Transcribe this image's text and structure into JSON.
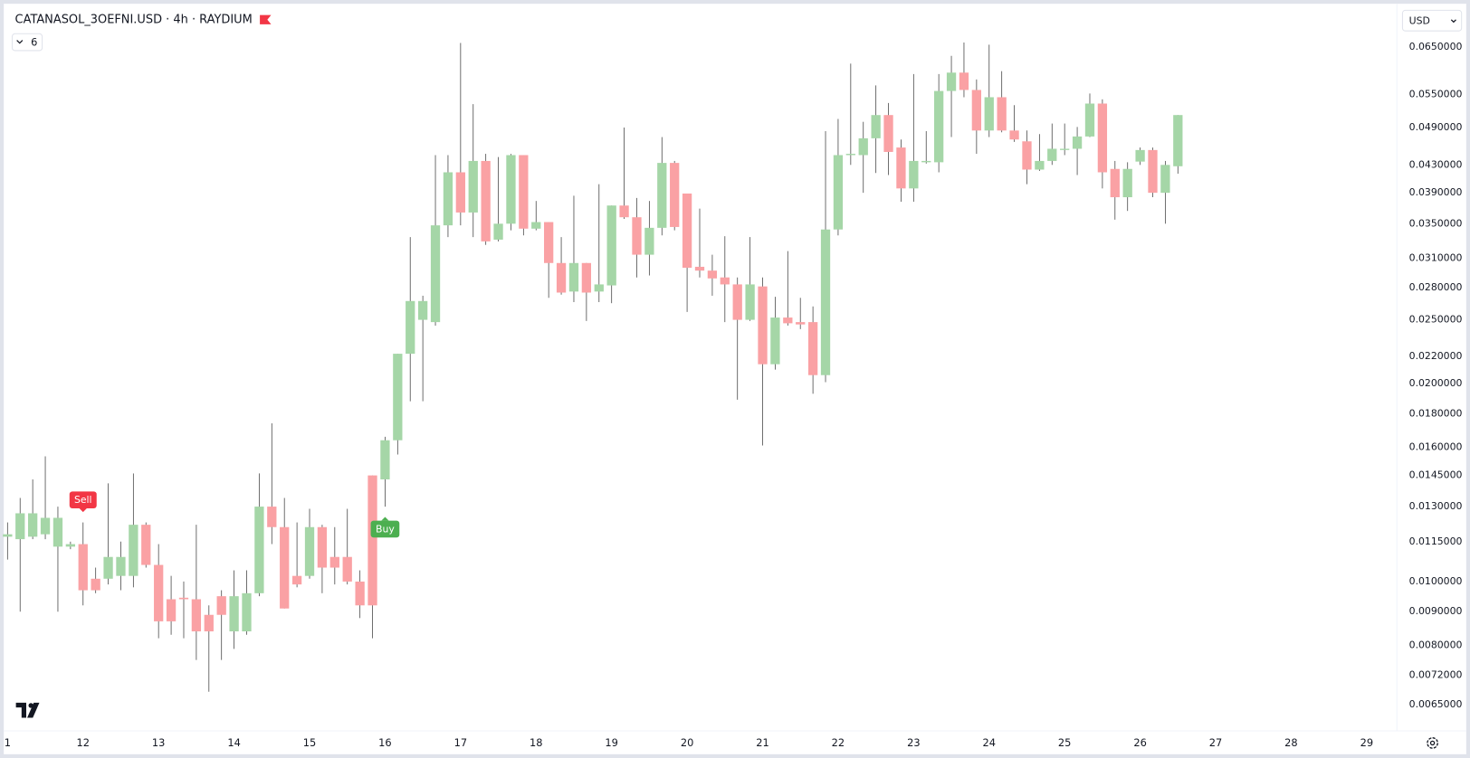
{
  "chart_data": {
    "type": "candlestick",
    "title": "CATANASOL_3OEFNI.USD · 4h · RAYDIUM",
    "indicator_count": 6,
    "currency": "USD",
    "log_scale": true,
    "grid": false,
    "up_color": "#a5d6a7",
    "down_color": "#faa1a4",
    "wick_color": "#505050",
    "open": [
      0.0117,
      0.0116,
      0.0117,
      0.0118,
      0.0113,
      0.0113,
      0.0114,
      0.0101,
      0.0101,
      0.0102,
      0.0102,
      0.0122,
      0.0106,
      0.0094,
      0.00945,
      0.0094,
      0.0089,
      0.0095,
      0.0084,
      0.0084,
      0.0096,
      0.013,
      0.0121,
      0.0102,
      0.0102,
      0.0121,
      0.0109,
      0.0109,
      0.01,
      0.0145,
      0.0143,
      0.0164,
      0.0222,
      0.025,
      0.0248,
      0.0348,
      0.0419,
      0.0364,
      0.0436,
      0.0331,
      0.035,
      0.0445,
      0.0344,
      0.0352,
      0.0305,
      0.0276,
      0.0305,
      0.0276,
      0.0282,
      0.0373,
      0.0358,
      0.0314,
      0.0345,
      0.0433,
      0.0389,
      0.0301,
      0.0297,
      0.029,
      0.0283,
      0.025,
      0.0281,
      0.0214,
      0.0252,
      0.0248,
      0.0248,
      0.0206,
      0.0343,
      0.0445,
      0.0445,
      0.0472,
      0.0512,
      0.0457,
      0.0396,
      0.0434,
      0.0434,
      0.0557,
      0.0594,
      0.0559,
      0.0485,
      0.0545,
      0.0485,
      0.0467,
      0.0423,
      0.0436,
      0.0453,
      0.0455,
      0.0475,
      0.0533,
      0.0424,
      0.0384,
      0.0435,
      0.0453,
      0.039,
      0.0428
    ],
    "high": [
      0.0123,
      0.0134,
      0.0143,
      0.0155,
      0.013,
      0.0115,
      0.0123,
      0.0105,
      0.0141,
      0.0115,
      0.0146,
      0.0123,
      0.0114,
      0.0102,
      0.01,
      0.0122,
      0.0092,
      0.0097,
      0.0104,
      0.0104,
      0.0146,
      0.0174,
      0.0134,
      0.0123,
      0.0129,
      0.0122,
      0.0121,
      0.0129,
      0.0104,
      0.0145,
      0.0166,
      0.0222,
      0.0334,
      0.0272,
      0.0445,
      0.0445,
      0.0659,
      0.0532,
      0.0447,
      0.0442,
      0.0447,
      0.0445,
      0.0379,
      0.0352,
      0.0334,
      0.0386,
      0.0305,
      0.0402,
      0.0373,
      0.049,
      0.0383,
      0.0379,
      0.0474,
      0.0436,
      0.0389,
      0.0369,
      0.0314,
      0.0335,
      0.029,
      0.0334,
      0.029,
      0.0271,
      0.0318,
      0.027,
      0.0262,
      0.0484,
      0.0505,
      0.0613,
      0.05,
      0.0568,
      0.0534,
      0.047,
      0.0591,
      0.0484,
      0.0591,
      0.063,
      0.066,
      0.058,
      0.0655,
      0.0597,
      0.053,
      0.0485,
      0.0479,
      0.0497,
      0.0497,
      0.0491,
      0.0552,
      0.0541,
      0.0436,
      0.0434,
      0.0457,
      0.0457,
      0.0436,
      0.0512
    ],
    "low": [
      0.0108,
      0.009,
      0.0116,
      0.0116,
      0.009,
      0.0112,
      0.0092,
      0.0096,
      0.0099,
      0.0097,
      0.0098,
      0.0105,
      0.0082,
      0.0083,
      0.0082,
      0.0076,
      0.0068,
      0.0076,
      0.0079,
      0.0083,
      0.0095,
      0.0114,
      0.0091,
      0.0098,
      0.0101,
      0.0096,
      0.0099,
      0.0099,
      0.0088,
      0.0082,
      0.013,
      0.0156,
      0.0188,
      0.0188,
      0.0245,
      0.0334,
      0.0348,
      0.0334,
      0.0325,
      0.0329,
      0.0342,
      0.0336,
      0.0342,
      0.027,
      0.0273,
      0.0266,
      0.0249,
      0.0266,
      0.0265,
      0.0356,
      0.029,
      0.0292,
      0.0336,
      0.0342,
      0.0257,
      0.029,
      0.0272,
      0.0248,
      0.0189,
      0.0249,
      0.0161,
      0.021,
      0.0245,
      0.0242,
      0.0193,
      0.0201,
      0.0336,
      0.043,
      0.039,
      0.0418,
      0.0415,
      0.0378,
      0.0378,
      0.0432,
      0.0419,
      0.0474,
      0.0545,
      0.0447,
      0.0474,
      0.0482,
      0.0466,
      0.0402,
      0.0421,
      0.043,
      0.0445,
      0.0415,
      0.0474,
      0.0396,
      0.0355,
      0.0366,
      0.043,
      0.0384,
      0.035,
      0.0417
    ],
    "close": [
      0.0118,
      0.0127,
      0.0127,
      0.0125,
      0.0125,
      0.0114,
      0.0097,
      0.0097,
      0.0109,
      0.0109,
      0.0122,
      0.0106,
      0.0087,
      0.0087,
      0.0094,
      0.0084,
      0.0084,
      0.0089,
      0.0095,
      0.0096,
      0.013,
      0.0121,
      0.0091,
      0.0099,
      0.0121,
      0.0105,
      0.0105,
      0.01,
      0.0092,
      0.0092,
      0.0164,
      0.0222,
      0.0267,
      0.0267,
      0.0348,
      0.0419,
      0.0364,
      0.0436,
      0.0329,
      0.035,
      0.0445,
      0.0344,
      0.0352,
      0.0305,
      0.0275,
      0.0305,
      0.0275,
      0.0283,
      0.0373,
      0.0358,
      0.0314,
      0.0345,
      0.0433,
      0.0346,
      0.03,
      0.0297,
      0.0289,
      0.0283,
      0.025,
      0.0283,
      0.0214,
      0.0252,
      0.0247,
      0.0246,
      0.0206,
      0.0343,
      0.0445,
      0.0447,
      0.0472,
      0.0512,
      0.045,
      0.0396,
      0.0436,
      0.0436,
      0.0557,
      0.0594,
      0.0559,
      0.0485,
      0.0545,
      0.0485,
      0.047,
      0.0423,
      0.0436,
      0.0455,
      0.0455,
      0.0475,
      0.0533,
      0.0419,
      0.0384,
      0.0424,
      0.0453,
      0.039,
      0.043,
      0.0512
    ],
    "annotations": [
      {
        "text": "Sell",
        "candle": 6,
        "placement": "above",
        "color": "#f23645"
      },
      {
        "text": "Buy",
        "candle": 30,
        "placement": "below",
        "color": "#4caf50"
      }
    ],
    "xlim": [
      -0.6,
      110.4
    ],
    "xticks": [
      {
        "value": 0,
        "label": "1"
      },
      {
        "value": 6,
        "label": "12"
      },
      {
        "value": 12,
        "label": "13"
      },
      {
        "value": 18,
        "label": "14"
      },
      {
        "value": 24,
        "label": "15"
      },
      {
        "value": 30,
        "label": "16"
      },
      {
        "value": 36,
        "label": "17"
      },
      {
        "value": 42,
        "label": "18"
      },
      {
        "value": 48,
        "label": "19"
      },
      {
        "value": 54,
        "label": "20"
      },
      {
        "value": 60,
        "label": "21"
      },
      {
        "value": 66,
        "label": "22"
      },
      {
        "value": 72,
        "label": "23"
      },
      {
        "value": 78,
        "label": "24"
      },
      {
        "value": 84,
        "label": "25"
      },
      {
        "value": 90,
        "label": "26"
      },
      {
        "value": 96,
        "label": "27"
      },
      {
        "value": 102,
        "label": "28"
      },
      {
        "value": 108,
        "label": "29"
      }
    ],
    "ylim": [
      0.00593,
      0.0751
    ],
    "yticks": [
      {
        "value": 0.065,
        "label": "0.0650000"
      },
      {
        "value": 0.055,
        "label": "0.0550000"
      },
      {
        "value": 0.049,
        "label": "0.0490000"
      },
      {
        "value": 0.043,
        "label": "0.0430000"
      },
      {
        "value": 0.039,
        "label": "0.0390000"
      },
      {
        "value": 0.035,
        "label": "0.0350000"
      },
      {
        "value": 0.031,
        "label": "0.0310000"
      },
      {
        "value": 0.028,
        "label": "0.0280000"
      },
      {
        "value": 0.025,
        "label": "0.0250000"
      },
      {
        "value": 0.022,
        "label": "0.0220000"
      },
      {
        "value": 0.02,
        "label": "0.0200000"
      },
      {
        "value": 0.018,
        "label": "0.0180000"
      },
      {
        "value": 0.016,
        "label": "0.0160000"
      },
      {
        "value": 0.0145,
        "label": "0.0145000"
      },
      {
        "value": 0.013,
        "label": "0.0130000"
      },
      {
        "value": 0.0115,
        "label": "0.0115000"
      },
      {
        "value": 0.01,
        "label": "0.0100000"
      },
      {
        "value": 0.009,
        "label": "0.0090000"
      },
      {
        "value": 0.008,
        "label": "0.0080000"
      },
      {
        "value": 0.0072,
        "label": "0.0072000"
      },
      {
        "value": 0.0065,
        "label": "0.0065000"
      }
    ]
  }
}
